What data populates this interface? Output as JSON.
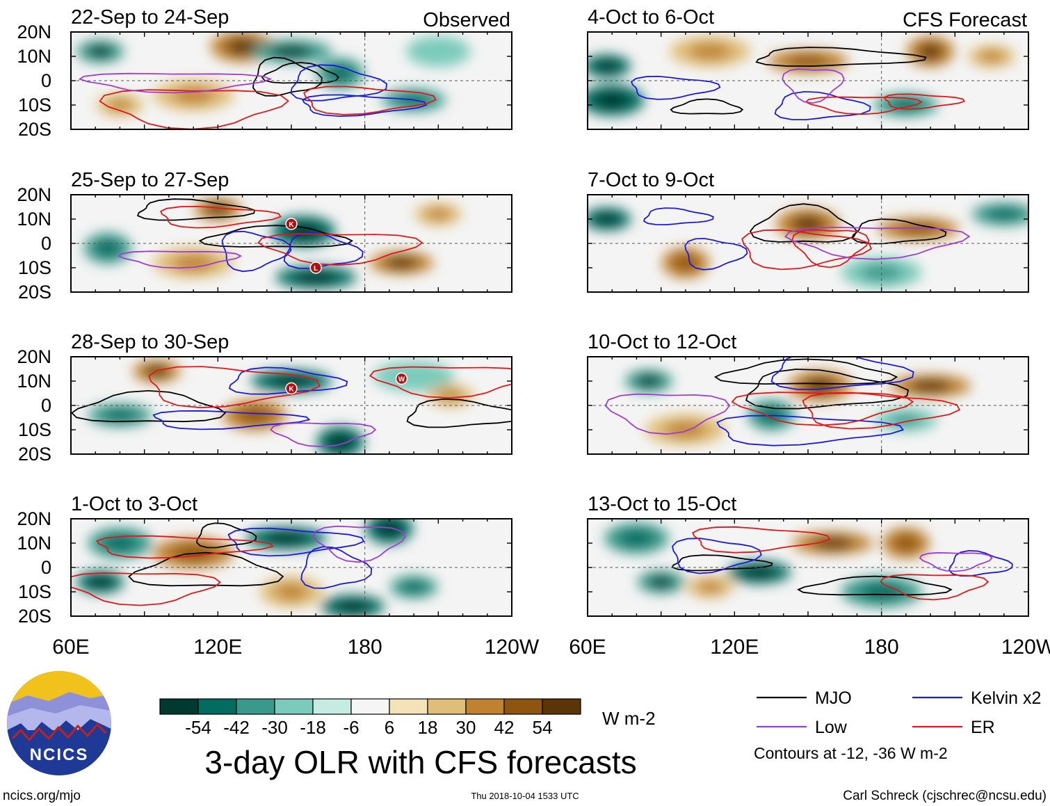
{
  "chart_data": {
    "type": "heatmap",
    "title": "3-day OLR with CFS forecasts",
    "variable": "OLR anomaly",
    "units": "W m-2",
    "colorbar": {
      "labels": [
        "-54",
        "-42",
        "-30",
        "-18",
        "-6",
        "6",
        "18",
        "30",
        "42",
        "54"
      ],
      "colors": [
        "#00392f",
        "#036b60",
        "#3a998b",
        "#7ccabb",
        "#c6ebe2",
        "#f5f5f5",
        "#f4e3b8",
        "#dfbe79",
        "#bf8230",
        "#8f5510",
        "#5b3408"
      ]
    },
    "x_ticks": [
      "60E",
      "120E",
      "180",
      "120W"
    ],
    "x_range": [
      60,
      240
    ],
    "y_ticks": [
      "20N",
      "10N",
      "0",
      "10S",
      "20S"
    ],
    "y_range": [
      -20,
      20
    ],
    "column_headers": {
      "observed": "Observed",
      "forecast": "CFS Forecast"
    },
    "panels": [
      {
        "label": "22-Sep to 24-Sep",
        "kind": "observed"
      },
      {
        "label": "25-Sep to 27-Sep",
        "kind": "observed"
      },
      {
        "label": "28-Sep to 30-Sep",
        "kind": "observed"
      },
      {
        "label": "1-Oct to 3-Oct",
        "kind": "observed"
      },
      {
        "label": "4-Oct to 6-Oct",
        "kind": "forecast"
      },
      {
        "label": "7-Oct to 9-Oct",
        "kind": "forecast"
      },
      {
        "label": "10-Oct to 12-Oct",
        "kind": "forecast"
      },
      {
        "label": "13-Oct to 15-Oct",
        "kind": "forecast"
      }
    ],
    "legend": [
      {
        "name": "MJO",
        "color": "#000000"
      },
      {
        "name": "Kelvin x2",
        "color": "#1a1adf"
      },
      {
        "name": "Low",
        "color": "#a03cd2"
      },
      {
        "name": "ER",
        "color": "#e01818"
      }
    ],
    "contour_note": "Contours at -12, -36 W m-2",
    "storm_markers": [
      {
        "panel": 1,
        "letter": "K",
        "lon": 150,
        "lat": 8
      },
      {
        "panel": 1,
        "letter": "L",
        "lon": 160,
        "lat": -10
      },
      {
        "panel": 2,
        "letter": "K",
        "lon": 150,
        "lat": 7
      },
      {
        "panel": 2,
        "letter": "W",
        "lon": 195,
        "lat": 11
      }
    ],
    "anomaly_blobs": [
      [
        {
          "lon": 72,
          "lat": 12,
          "v": -40
        },
        {
          "lon": 130,
          "lat": 14,
          "v": 40
        },
        {
          "lon": 150,
          "lat": 12,
          "v": -40
        },
        {
          "lon": 170,
          "lat": 3,
          "v": -30
        },
        {
          "lon": 200,
          "lat": -8,
          "v": -30
        },
        {
          "lon": 110,
          "lat": -6,
          "v": 30
        },
        {
          "lon": 80,
          "lat": -10,
          "v": 24
        },
        {
          "lon": 210,
          "lat": 12,
          "v": -20
        }
      ],
      [
        {
          "lon": 120,
          "lat": 14,
          "v": 42
        },
        {
          "lon": 155,
          "lat": 5,
          "v": -50
        },
        {
          "lon": 160,
          "lat": -14,
          "v": -50
        },
        {
          "lon": 75,
          "lat": -2,
          "v": -35
        },
        {
          "lon": 195,
          "lat": -8,
          "v": 40
        },
        {
          "lon": 110,
          "lat": -8,
          "v": 30
        },
        {
          "lon": 210,
          "lat": 12,
          "v": 24
        }
      ],
      [
        {
          "lon": 95,
          "lat": 14,
          "v": 42
        },
        {
          "lon": 135,
          "lat": -4,
          "v": 36
        },
        {
          "lon": 150,
          "lat": 10,
          "v": -45
        },
        {
          "lon": 170,
          "lat": -15,
          "v": -50
        },
        {
          "lon": 80,
          "lat": -4,
          "v": -35
        },
        {
          "lon": 200,
          "lat": 12,
          "v": -20
        },
        {
          "lon": 215,
          "lat": 4,
          "v": 30
        }
      ],
      [
        {
          "lon": 72,
          "lat": -6,
          "v": -45
        },
        {
          "lon": 80,
          "lat": 10,
          "v": -30
        },
        {
          "lon": 148,
          "lat": 12,
          "v": -50
        },
        {
          "lon": 190,
          "lat": 16,
          "v": -50
        },
        {
          "lon": 175,
          "lat": -16,
          "v": -45
        },
        {
          "lon": 110,
          "lat": 6,
          "v": 34
        },
        {
          "lon": 200,
          "lat": -8,
          "v": -30
        },
        {
          "lon": 150,
          "lat": -10,
          "v": 28
        }
      ],
      [
        {
          "lon": 68,
          "lat": 6,
          "v": -50
        },
        {
          "lon": 70,
          "lat": -8,
          "v": -45
        },
        {
          "lon": 150,
          "lat": 8,
          "v": 35
        },
        {
          "lon": 200,
          "lat": 12,
          "v": 42
        },
        {
          "lon": 190,
          "lat": -10,
          "v": -30
        },
        {
          "lon": 110,
          "lat": 12,
          "v": 30
        },
        {
          "lon": 225,
          "lat": 10,
          "v": 30
        }
      ],
      [
        {
          "lon": 68,
          "lat": 10,
          "v": -50
        },
        {
          "lon": 150,
          "lat": 8,
          "v": 40
        },
        {
          "lon": 195,
          "lat": 6,
          "v": 38
        },
        {
          "lon": 100,
          "lat": -8,
          "v": 36
        },
        {
          "lon": 230,
          "lat": 12,
          "v": -30
        },
        {
          "lon": 180,
          "lat": -12,
          "v": -25
        }
      ],
      [
        {
          "lon": 85,
          "lat": 10,
          "v": -40
        },
        {
          "lon": 155,
          "lat": 8,
          "v": 42
        },
        {
          "lon": 200,
          "lat": 8,
          "v": 40
        },
        {
          "lon": 135,
          "lat": -4,
          "v": -35
        },
        {
          "lon": 190,
          "lat": -6,
          "v": -25
        },
        {
          "lon": 100,
          "lat": -10,
          "v": 22
        }
      ],
      [
        {
          "lon": 90,
          "lat": -6,
          "v": -40
        },
        {
          "lon": 80,
          "lat": 12,
          "v": -30
        },
        {
          "lon": 160,
          "lat": 10,
          "v": 42
        },
        {
          "lon": 190,
          "lat": 10,
          "v": 38
        },
        {
          "lon": 130,
          "lat": -2,
          "v": -45
        },
        {
          "lon": 180,
          "lat": -10,
          "v": -35
        },
        {
          "lon": 110,
          "lat": -8,
          "v": 30
        }
      ]
    ]
  },
  "logo": {
    "text": "NCICS"
  },
  "footer": {
    "left": "ncics.org/mjo",
    "center": "Thu 2018-10-04 1533 UTC",
    "right": "Carl Schreck (cjschrec@ncsu.edu)"
  }
}
